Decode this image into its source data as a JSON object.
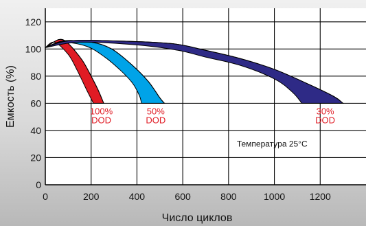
{
  "chart_data": {
    "type": "area",
    "xlabel": "Число циклов",
    "ylabel": "Емкость (%)",
    "xlim": [
      0,
      1400
    ],
    "ylim": [
      0,
      130
    ],
    "x_ticks": [
      "0",
      "200",
      "400",
      "600",
      "800",
      "1000",
      "1200"
    ],
    "y_ticks": [
      "0",
      "20",
      "40",
      "60",
      "80",
      "100",
      "120"
    ],
    "grid": true,
    "annotation": "Температура 25°C",
    "series": [
      {
        "label_lines": [
          "100%",
          "DOD"
        ],
        "color": "#e01b24",
        "label_color": "#e01b24",
        "upper": [
          [
            0,
            101
          ],
          [
            60,
            107
          ],
          [
            100,
            104
          ],
          [
            160,
            92
          ],
          [
            200,
            80
          ],
          [
            230,
            70
          ],
          [
            255,
            60
          ]
        ],
        "lower": [
          [
            0,
            101
          ],
          [
            40,
            105
          ],
          [
            100,
            96
          ],
          [
            140,
            84
          ],
          [
            180,
            70
          ],
          [
            210,
            60
          ]
        ]
      },
      {
        "label_lines": [
          "50%",
          "DOD"
        ],
        "color": "#00a3e8",
        "label_color": "#e01b24",
        "upper": [
          [
            0,
            101
          ],
          [
            80,
            106
          ],
          [
            200,
            105
          ],
          [
            290,
            100
          ],
          [
            380,
            88
          ],
          [
            450,
            76
          ],
          [
            500,
            64
          ],
          [
            520,
            60
          ]
        ],
        "lower": [
          [
            0,
            101
          ],
          [
            70,
            105
          ],
          [
            180,
            102
          ],
          [
            260,
            94
          ],
          [
            330,
            84
          ],
          [
            380,
            75
          ],
          [
            410,
            66
          ],
          [
            420,
            60
          ]
        ]
      },
      {
        "label_lines": [
          "30%",
          "DOD"
        ],
        "color": "#2e2a86",
        "label_color": "#e01b24",
        "upper": [
          [
            0,
            101
          ],
          [
            100,
            106
          ],
          [
            300,
            106
          ],
          [
            550,
            104
          ],
          [
            700,
            99
          ],
          [
            850,
            93
          ],
          [
            1000,
            85
          ],
          [
            1150,
            74
          ],
          [
            1260,
            65
          ],
          [
            1300,
            60
          ]
        ],
        "lower": [
          [
            0,
            101
          ],
          [
            150,
            105
          ],
          [
            400,
            103
          ],
          [
            580,
            99
          ],
          [
            700,
            94
          ],
          [
            850,
            88
          ],
          [
            1000,
            78
          ],
          [
            1080,
            68
          ],
          [
            1120,
            60
          ]
        ]
      }
    ]
  }
}
